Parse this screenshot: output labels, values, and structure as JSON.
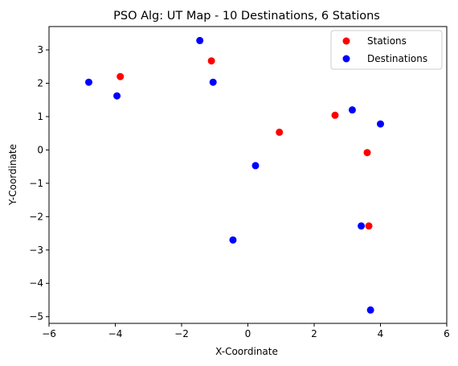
{
  "chart_data": {
    "type": "scatter",
    "title": "PSO Alg: UT Map - 10 Destinations, 6 Stations",
    "xlabel": "X-Coordinate",
    "ylabel": "Y-Coordinate",
    "xlim": [
      -6,
      6
    ],
    "ylim": [
      -5.2,
      3.7
    ],
    "xticks": [
      -6,
      -4,
      -2,
      0,
      2,
      4,
      6
    ],
    "xtick_labels": [
      "−6",
      "−4",
      "−2",
      "0",
      "2",
      "4",
      "6"
    ],
    "yticks": [
      -5,
      -4,
      -3,
      -2,
      -1,
      0,
      1,
      2,
      3
    ],
    "ytick_labels": [
      "−5",
      "−4",
      "−3",
      "−2",
      "−1",
      "0",
      "1",
      "2",
      "3"
    ],
    "grid": false,
    "legend_position": "top-right",
    "series": [
      {
        "name": "Stations",
        "color": "#ff0000",
        "points": [
          {
            "x": -3.85,
            "y": 2.2
          },
          {
            "x": -1.1,
            "y": 2.67
          },
          {
            "x": 0.95,
            "y": 0.53
          },
          {
            "x": 2.63,
            "y": 1.04
          },
          {
            "x": 3.6,
            "y": -0.08
          },
          {
            "x": 3.65,
            "y": -2.28
          }
        ]
      },
      {
        "name": "Destinations",
        "color": "#0000ff",
        "points": [
          {
            "x": -4.8,
            "y": 2.03
          },
          {
            "x": -3.95,
            "y": 1.62
          },
          {
            "x": -1.45,
            "y": 3.28
          },
          {
            "x": -1.05,
            "y": 2.03
          },
          {
            "x": 0.23,
            "y": -0.47
          },
          {
            "x": -0.45,
            "y": -2.7
          },
          {
            "x": 3.15,
            "y": 1.2
          },
          {
            "x": 4.0,
            "y": 0.78
          },
          {
            "x": 3.42,
            "y": -2.28
          },
          {
            "x": 3.7,
            "y": -4.8
          }
        ]
      }
    ]
  }
}
